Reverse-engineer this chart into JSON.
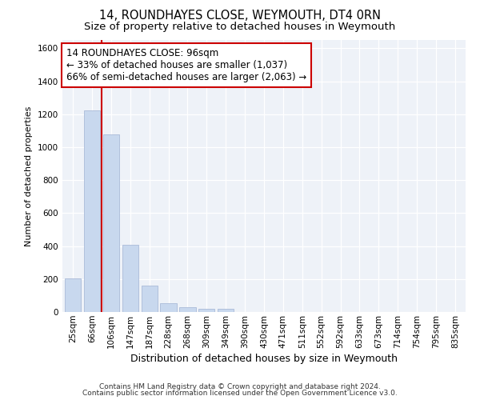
{
  "title": "14, ROUNDHAYES CLOSE, WEYMOUTH, DT4 0RN",
  "subtitle": "Size of property relative to detached houses in Weymouth",
  "xlabel": "Distribution of detached houses by size in Weymouth",
  "ylabel": "Number of detached properties",
  "categories": [
    "25sqm",
    "66sqm",
    "106sqm",
    "147sqm",
    "187sqm",
    "228sqm",
    "268sqm",
    "309sqm",
    "349sqm",
    "390sqm",
    "430sqm",
    "471sqm",
    "511sqm",
    "552sqm",
    "592sqm",
    "633sqm",
    "673sqm",
    "714sqm",
    "754sqm",
    "795sqm",
    "835sqm"
  ],
  "values": [
    205,
    1225,
    1075,
    410,
    160,
    55,
    30,
    20,
    20,
    0,
    0,
    0,
    0,
    0,
    0,
    0,
    0,
    0,
    0,
    0,
    0
  ],
  "bar_color": "#c8d8ee",
  "bar_edge_color": "#aabbd8",
  "property_line_x": 1.5,
  "property_line_color": "#cc0000",
  "annotation_line1": "14 ROUNDHAYES CLOSE: 96sqm",
  "annotation_line2": "← 33% of detached houses are smaller (1,037)",
  "annotation_line3": "66% of semi-detached houses are larger (2,063) →",
  "annotation_box_color": "#ffffff",
  "annotation_box_edge_color": "#cc0000",
  "ylim": [
    0,
    1650
  ],
  "yticks": [
    0,
    200,
    400,
    600,
    800,
    1000,
    1200,
    1400,
    1600
  ],
  "footer1": "Contains HM Land Registry data © Crown copyright and database right 2024.",
  "footer2": "Contains public sector information licensed under the Open Government Licence v3.0.",
  "plot_bg_color": "#eef2f8",
  "title_fontsize": 10.5,
  "subtitle_fontsize": 9.5,
  "ylabel_fontsize": 8,
  "xlabel_fontsize": 9,
  "tick_fontsize": 7.5,
  "annotation_fontsize": 8.5,
  "footer_fontsize": 6.5
}
